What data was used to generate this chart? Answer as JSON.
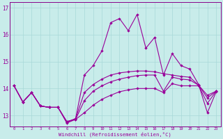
{
  "xlabel": "Windchill (Refroidissement éolien,°C)",
  "bg_color": "#c8ecea",
  "grid_color": "#a8d8d8",
  "line_color": "#990099",
  "border_color": "#880088",
  "x": [
    0,
    1,
    2,
    3,
    4,
    5,
    6,
    7,
    8,
    9,
    10,
    11,
    12,
    13,
    14,
    15,
    16,
    17,
    18,
    19,
    20,
    21,
    22,
    23
  ],
  "series1": [
    14.1,
    13.5,
    13.85,
    13.35,
    13.3,
    13.3,
    12.78,
    12.85,
    13.55,
    13.9,
    14.1,
    14.25,
    14.35,
    14.42,
    14.48,
    14.5,
    14.5,
    13.9,
    14.42,
    14.35,
    14.32,
    14.12,
    13.75,
    13.9
  ],
  "series2": [
    14.1,
    13.5,
    13.85,
    13.35,
    13.3,
    13.3,
    12.75,
    12.88,
    13.85,
    14.15,
    14.35,
    14.5,
    14.58,
    14.62,
    14.65,
    14.65,
    14.62,
    14.55,
    14.5,
    14.45,
    14.42,
    14.12,
    13.65,
    13.9
  ],
  "series3": [
    14.1,
    13.5,
    13.85,
    13.35,
    13.3,
    13.3,
    12.75,
    12.88,
    14.5,
    14.85,
    15.4,
    16.45,
    16.6,
    16.15,
    16.75,
    15.5,
    15.9,
    14.5,
    15.3,
    14.85,
    14.72,
    14.15,
    13.1,
    13.88
  ],
  "series4": [
    14.1,
    13.5,
    13.85,
    13.35,
    13.3,
    13.3,
    12.72,
    12.85,
    13.1,
    13.38,
    13.6,
    13.75,
    13.88,
    13.95,
    14.0,
    14.0,
    14.0,
    13.85,
    14.18,
    14.1,
    14.1,
    14.1,
    13.45,
    13.9
  ],
  "ylim": [
    12.6,
    17.2
  ],
  "yticks": [
    13,
    14,
    15,
    16,
    17
  ],
  "xtick_labels": [
    "0",
    "1",
    "2",
    "3",
    "4",
    "5",
    "6",
    "7",
    "8",
    "9",
    "10",
    "11",
    "12",
    "13",
    "14",
    "15",
    "16",
    "17",
    "18",
    "19",
    "20",
    "21",
    "22",
    "23"
  ]
}
